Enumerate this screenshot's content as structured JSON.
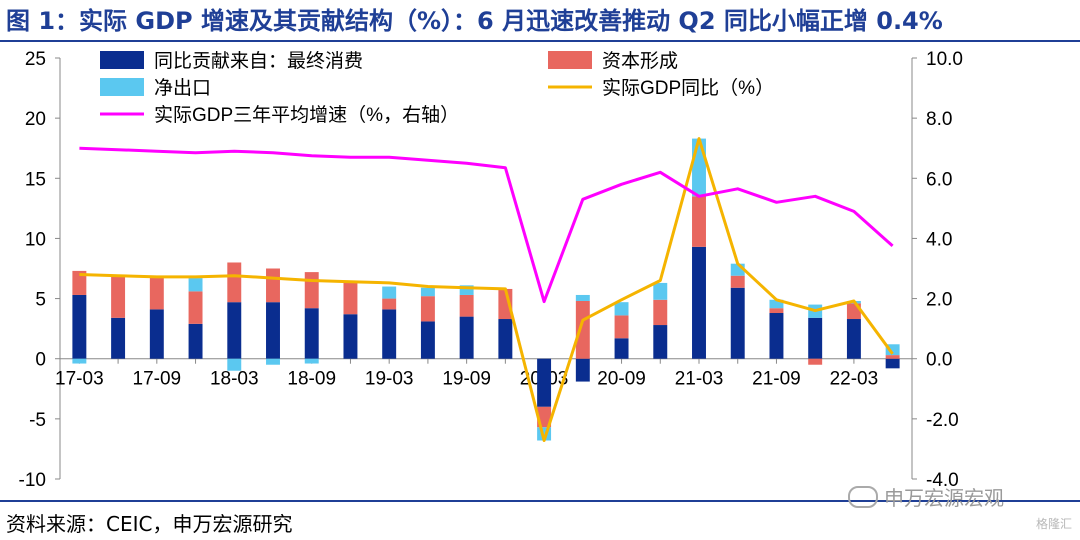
{
  "header": {
    "title": "图 1：实际 GDP 增速及其贡献结构（%）：6 月迅速改善推动 Q2 同比小幅正增 0.4%"
  },
  "footer": {
    "source": "资料来源：CEIC，申万宏源研究",
    "watermark": "申万宏源宏观",
    "corner_mark": "格隆汇"
  },
  "colors": {
    "consumption": "#0A2D8F",
    "capital": "#E8675F",
    "net_exports": "#5BC8F0",
    "gdp_yoy": "#F5B400",
    "gdp_3yr": "#FF00FF",
    "title": "#1F3F96"
  },
  "chart_data": {
    "type": "bar",
    "stacked": true,
    "categories": [
      "17-03",
      "17-06",
      "17-09",
      "17-12",
      "18-03",
      "18-06",
      "18-09",
      "18-12",
      "19-03",
      "19-06",
      "19-09",
      "19-12",
      "20-03",
      "20-06",
      "20-09",
      "20-12",
      "21-03",
      "21-06",
      "21-09",
      "21-12",
      "22-03",
      "22-06"
    ],
    "x_tick_labels": [
      "17-03",
      "17-09",
      "18-03",
      "18-09",
      "19-03",
      "19-09",
      "20-03",
      "20-09",
      "21-03",
      "21-09",
      "22-03"
    ],
    "y_left": {
      "ylim": [
        -10,
        25
      ],
      "ticks": [
        25,
        20,
        15,
        10,
        5,
        0,
        -5,
        -10
      ]
    },
    "y_right": {
      "ylim": [
        -4,
        10
      ],
      "ticks": [
        "10.0",
        "8.0",
        "6.0",
        "4.0",
        "2.0",
        "0.0",
        "-2.0",
        "-4.0"
      ]
    },
    "grid": false,
    "legend_placement": "top, two columns",
    "series": [
      {
        "name": "同比贡献来自：最终消费",
        "type": "bar",
        "axis": "left",
        "color_key": "consumption",
        "values": [
          5.3,
          3.4,
          4.1,
          2.9,
          4.7,
          4.7,
          4.2,
          3.7,
          4.1,
          3.1,
          3.5,
          3.3,
          -4.0,
          -1.9,
          1.7,
          2.8,
          9.3,
          5.9,
          3.8,
          3.4,
          3.3,
          -0.8
        ]
      },
      {
        "name": "资本形成",
        "type": "bar",
        "axis": "left",
        "color_key": "capital",
        "values": [
          2.0,
          3.5,
          2.8,
          2.7,
          3.3,
          2.8,
          3.0,
          2.7,
          0.9,
          2.1,
          1.8,
          2.5,
          -1.7,
          4.8,
          1.9,
          2.1,
          4.2,
          1.0,
          0.4,
          -0.5,
          1.3,
          0.3
        ]
      },
      {
        "name": "净出口",
        "type": "bar",
        "axis": "left",
        "color_key": "net_exports",
        "values": [
          -0.4,
          0.0,
          0.0,
          1.1,
          -1.0,
          -0.5,
          -0.4,
          0.0,
          1.0,
          0.7,
          0.8,
          0.0,
          -1.1,
          0.5,
          1.1,
          1.4,
          4.8,
          1.0,
          0.7,
          1.1,
          0.2,
          0.9
        ]
      },
      {
        "name": "实际GDP同比（%）",
        "type": "line",
        "axis": "left",
        "color_key": "gdp_yoy",
        "values": [
          7.0,
          6.9,
          6.8,
          6.8,
          6.9,
          6.7,
          6.5,
          6.4,
          6.3,
          6.0,
          5.9,
          5.8,
          -6.8,
          3.2,
          4.9,
          6.5,
          18.3,
          7.9,
          4.9,
          4.0,
          4.8,
          0.4
        ]
      },
      {
        "name": "实际GDP三年平均增速（%，右轴）",
        "type": "line",
        "axis": "right",
        "color_key": "gdp_3yr",
        "values": [
          7.0,
          6.95,
          6.9,
          6.85,
          6.9,
          6.85,
          6.75,
          6.7,
          6.7,
          6.6,
          6.5,
          6.35,
          1.9,
          5.3,
          5.8,
          6.2,
          5.4,
          5.65,
          5.2,
          5.4,
          4.9,
          3.75
        ]
      }
    ]
  }
}
